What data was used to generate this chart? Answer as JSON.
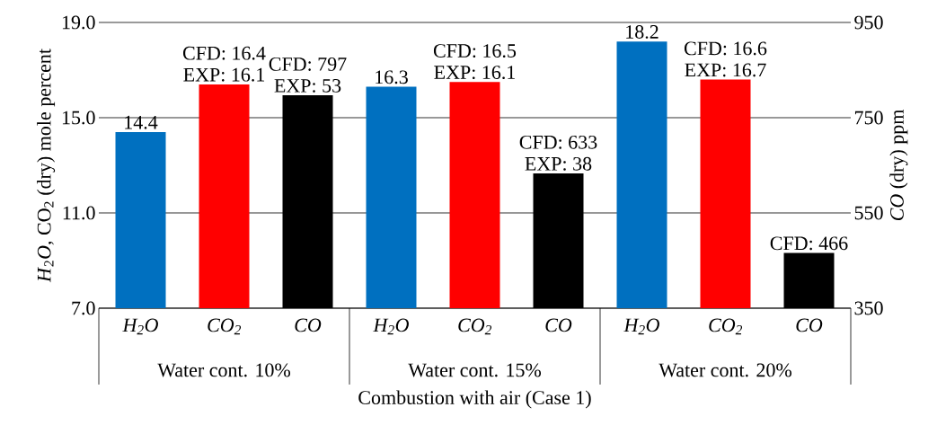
{
  "chart_data": {
    "type": "bar",
    "xlabel": "Combustion with air (Case 1)",
    "ylabel": "*H*$_{2}$*O*, CO$_{2}$ (dry) mole percent",
    "y2label": "*CO* (dry) ppm",
    "categories": [
      "H$_{2}$O",
      "CO$_{2}$",
      "CO",
      "H$_{2}$O",
      "CO$_{2}$",
      "CO",
      "H$_{2}$O",
      "CO$_{2}$",
      "CO"
    ],
    "series": [
      {
        "color": "#0070c0",
        "values": [
          14.4,
          null,
          null,
          16.3,
          null,
          null,
          18.2,
          null,
          null
        ],
        "value_labels": [
          "14.4",
          null,
          null,
          "16.3",
          null,
          null,
          "18.2",
          null,
          null
        ]
      },
      {
        "color": "#ff0000",
        "values": [
          null,
          16.4,
          null,
          null,
          16.5,
          null,
          null,
          16.6,
          null
        ],
        "value_labels": [
          null,
          "CFD: 16.4 EXP: 16.1",
          null,
          null,
          "CFD: 16.5 EXP: 16.1",
          null,
          null,
          "CFD: 16.6 EXP: 16.7",
          null
        ]
      },
      {
        "color": "#000000",
        "axis": "y2",
        "values": [
          null,
          null,
          797,
          null,
          null,
          633,
          null,
          null,
          466
        ],
        "value_labels": [
          null,
          null,
          "CFD: 797 EXP: 53",
          null,
          null,
          "CFD: 633 EXP: 38",
          null,
          null,
          "CFD: 466"
        ]
      }
    ],
    "ylim": [
      7,
      19
    ],
    "yticks": [
      {
        "value": 7,
        "label": "7.0"
      },
      {
        "value": 11,
        "label": "11.0"
      },
      {
        "value": 15,
        "label": "15.0"
      },
      {
        "value": 19,
        "label": "19.0"
      }
    ],
    "y2lim": [
      350,
      950
    ],
    "y2ticks": [
      350,
      550,
      750,
      950
    ],
    "grid": "y",
    "annotations": [
      "Water cont. 10%",
      "Water cont. 15%",
      "Water cont. 20%"
    ]
  }
}
